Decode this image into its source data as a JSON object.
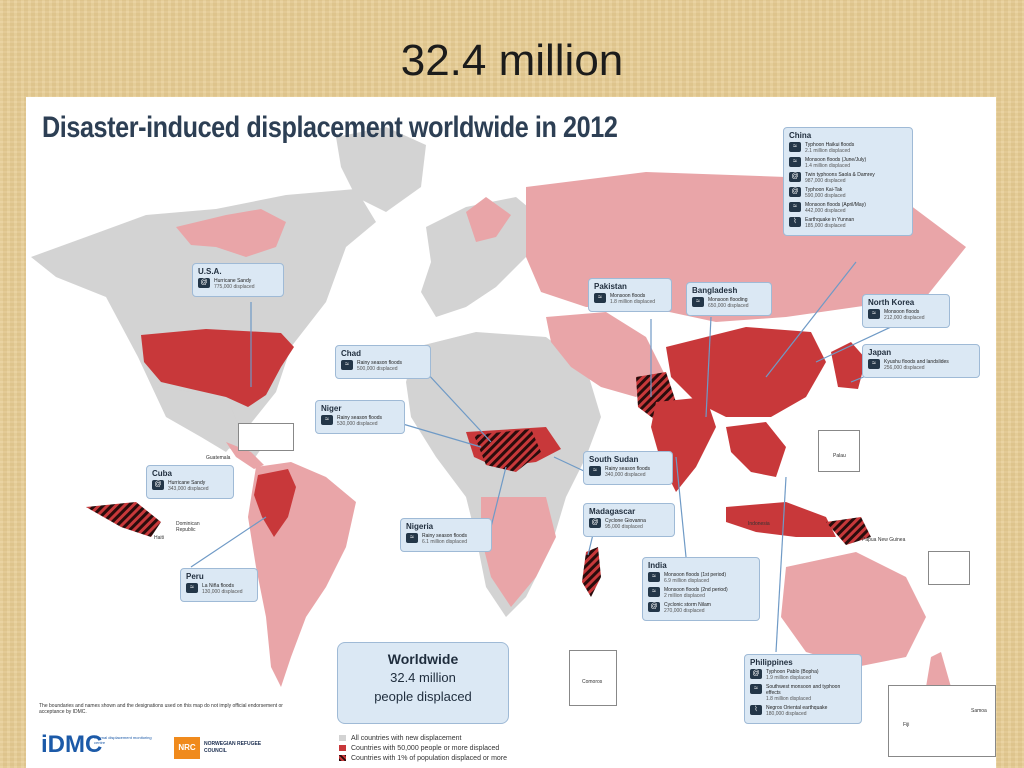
{
  "slide": {
    "title": "32.4 million"
  },
  "map": {
    "heading": "Disaster-induced displacement worldwide in 2012",
    "colors": {
      "no_data": "#d3d3d3",
      "new_displacement": "#e9a5a8",
      "over_50000": "#c8383a",
      "hatch": "#2a0c0c",
      "callout_bg": "#dbe8f4",
      "ocean": "#ffffff"
    },
    "callouts": {
      "china": {
        "name": "China",
        "events": [
          {
            "title": "Typhoon Haikui floods",
            "value": "2.1 million displaced"
          },
          {
            "title": "Monsoon floods (June/July)",
            "value": "1.4 million displaced"
          },
          {
            "title": "Twin typhoons Saola & Damrey",
            "value": "987,000 displaced"
          },
          {
            "title": "Typhoon Kai-Tak",
            "value": "590,000 displaced"
          },
          {
            "title": "Monsoon floods (April/May)",
            "value": "442,000 displaced"
          },
          {
            "title": "Earthquake in Yunnan",
            "value": "185,000 displaced"
          }
        ]
      },
      "usa": {
        "name": "U.S.A.",
        "events": [
          {
            "title": "Hurricane Sandy",
            "value": "775,000 displaced"
          }
        ]
      },
      "pakistan": {
        "name": "Pakistan",
        "events": [
          {
            "title": "Monsoon floods",
            "value": "1.8 million displaced"
          }
        ]
      },
      "bangladesh": {
        "name": "Bangladesh",
        "events": [
          {
            "title": "Monsoon flooding",
            "value": "650,000 displaced"
          }
        ]
      },
      "north_korea": {
        "name": "North Korea",
        "events": [
          {
            "title": "Monsoon floods",
            "value": "212,000 displaced"
          }
        ]
      },
      "japan": {
        "name": "Japan",
        "events": [
          {
            "title": "Kyushu floods and landslides",
            "value": "256,000 displaced"
          }
        ]
      },
      "chad": {
        "name": "Chad",
        "events": [
          {
            "title": "Rainy season floods",
            "value": "500,000 displaced"
          }
        ]
      },
      "niger": {
        "name": "Niger",
        "events": [
          {
            "title": "Rainy season floods",
            "value": "530,000 displaced"
          }
        ]
      },
      "south_sudan": {
        "name": "South Sudan",
        "events": [
          {
            "title": "Rainy season floods",
            "value": "340,000 displaced"
          }
        ]
      },
      "madagascar": {
        "name": "Madagascar",
        "events": [
          {
            "title": "Cyclone Giovanna",
            "value": "95,000 displaced"
          }
        ]
      },
      "nigeria": {
        "name": "Nigeria",
        "events": [
          {
            "title": "Rainy season floods",
            "value": "6.1 million displaced"
          }
        ]
      },
      "cuba": {
        "name": "Cuba",
        "events": [
          {
            "title": "Hurricane Sandy",
            "value": "343,000 displaced"
          }
        ]
      },
      "peru": {
        "name": "Peru",
        "events": [
          {
            "title": "La Niña floods",
            "value": "130,000 displaced"
          }
        ]
      },
      "india": {
        "name": "India",
        "events": [
          {
            "title": "Monsoon floods (1st period)",
            "value": "6.9 million displaced"
          },
          {
            "title": "Monsoon floods (2nd period)",
            "value": "2 million displaced"
          },
          {
            "title": "Cyclonic storm Nilam",
            "value": "270,000 displaced"
          }
        ]
      },
      "philippines": {
        "name": "Philippines",
        "events": [
          {
            "title": "Typhoon Pablo (Bopha)",
            "value": "1.9 million displaced"
          },
          {
            "title": "Southwest monsoon and typhoon effects",
            "value": "1.8 million displaced"
          },
          {
            "title": "Negros Oriental earthquake",
            "value": "180,000 displaced"
          }
        ]
      }
    },
    "worldwide": {
      "title": "Worldwide",
      "line1": "32.4 million",
      "line2": "people displaced"
    },
    "place_labels": {
      "guatemala": "Guatemala",
      "dominican_republic": "Dominican Republic",
      "haiti": "Haiti",
      "palau": "Palau",
      "papua_new_guinea": "Papua New Guinea",
      "indonesia": "Indonesia",
      "comoros": "Comoros",
      "fiji": "Fiji",
      "samoa": "Samoa"
    },
    "disclaimer": "The boundaries and names shown and the designations used on this map do not imply official endorsement or acceptance by IDMC.",
    "legend": [
      {
        "label": "All countries with new displacement",
        "swatch": "light"
      },
      {
        "label": "Countries with 50,000 people or more displaced",
        "swatch": "dark"
      },
      {
        "label": "Countries with 1% of population displaced or more",
        "swatch": "hatch"
      }
    ],
    "logos": {
      "idmc": "iDMC",
      "idmc_sub": "internal displacement monitoring centre",
      "nrc": "NRC",
      "nrc_text": "NORWEGIAN REFUGEE COUNCIL"
    }
  }
}
